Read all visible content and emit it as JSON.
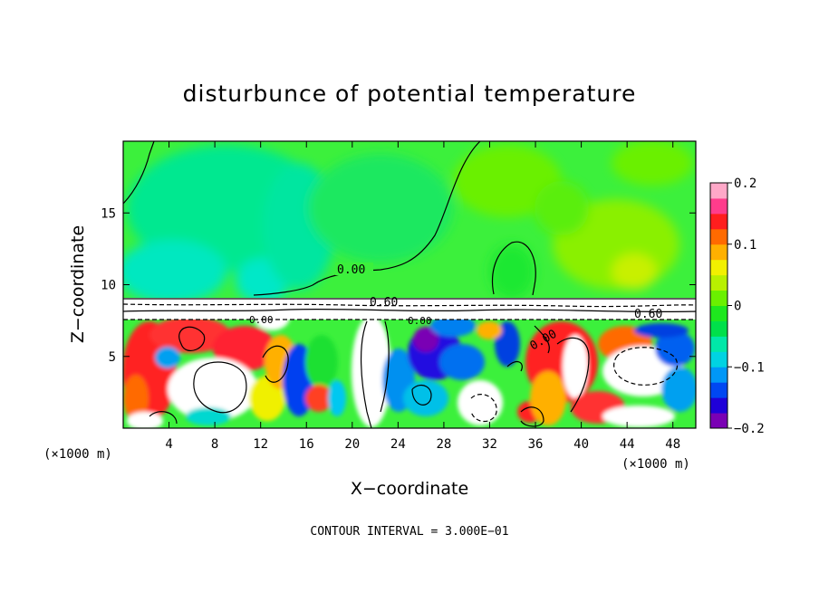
{
  "chart_data": {
    "type": "heatmap",
    "title": "disturbunce of potential temperature",
    "xlabel": "X−coordinate",
    "ylabel": "Z−coordinate",
    "x_unit_note": "(×1000 m)",
    "z_unit_note": "(×1000 m)",
    "x_ticks": [
      4,
      8,
      12,
      16,
      20,
      24,
      28,
      32,
      36,
      40,
      44,
      48
    ],
    "z_ticks": [
      5,
      10,
      15
    ],
    "xlim": [
      0,
      50
    ],
    "zlim": [
      0,
      20
    ],
    "colorbar": {
      "ticks": [
        0.2,
        0.1,
        0,
        -0.1,
        -0.2
      ],
      "tick_labels": [
        "0.2",
        "0.1",
        "0",
        "−0.1",
        "−0.2"
      ],
      "range": [
        -0.2,
        0.2
      ],
      "colors": [
        "#7a00b4",
        "#1f00d8",
        "#0047f2",
        "#0097f7",
        "#00d3e2",
        "#00e8a8",
        "#00e04a",
        "#1ee81e",
        "#6af000",
        "#b8f000",
        "#f2f000",
        "#ffb000",
        "#ff6a00",
        "#ff1e1e",
        "#ff3c8c",
        "#ffa8c8"
      ]
    },
    "contour_labels": [
      "0.00",
      "0.60",
      "0.00",
      "0.00",
      "0.60",
      "0.00"
    ],
    "contour_interval_text": "CONTOUR INTERVAL = 3.000E−01",
    "regions": [
      {
        "z_range": [
          9,
          20
        ],
        "level": 0.0
      },
      {
        "z_range": [
          0,
          9
        ],
        "level": "mixed"
      }
    ]
  }
}
